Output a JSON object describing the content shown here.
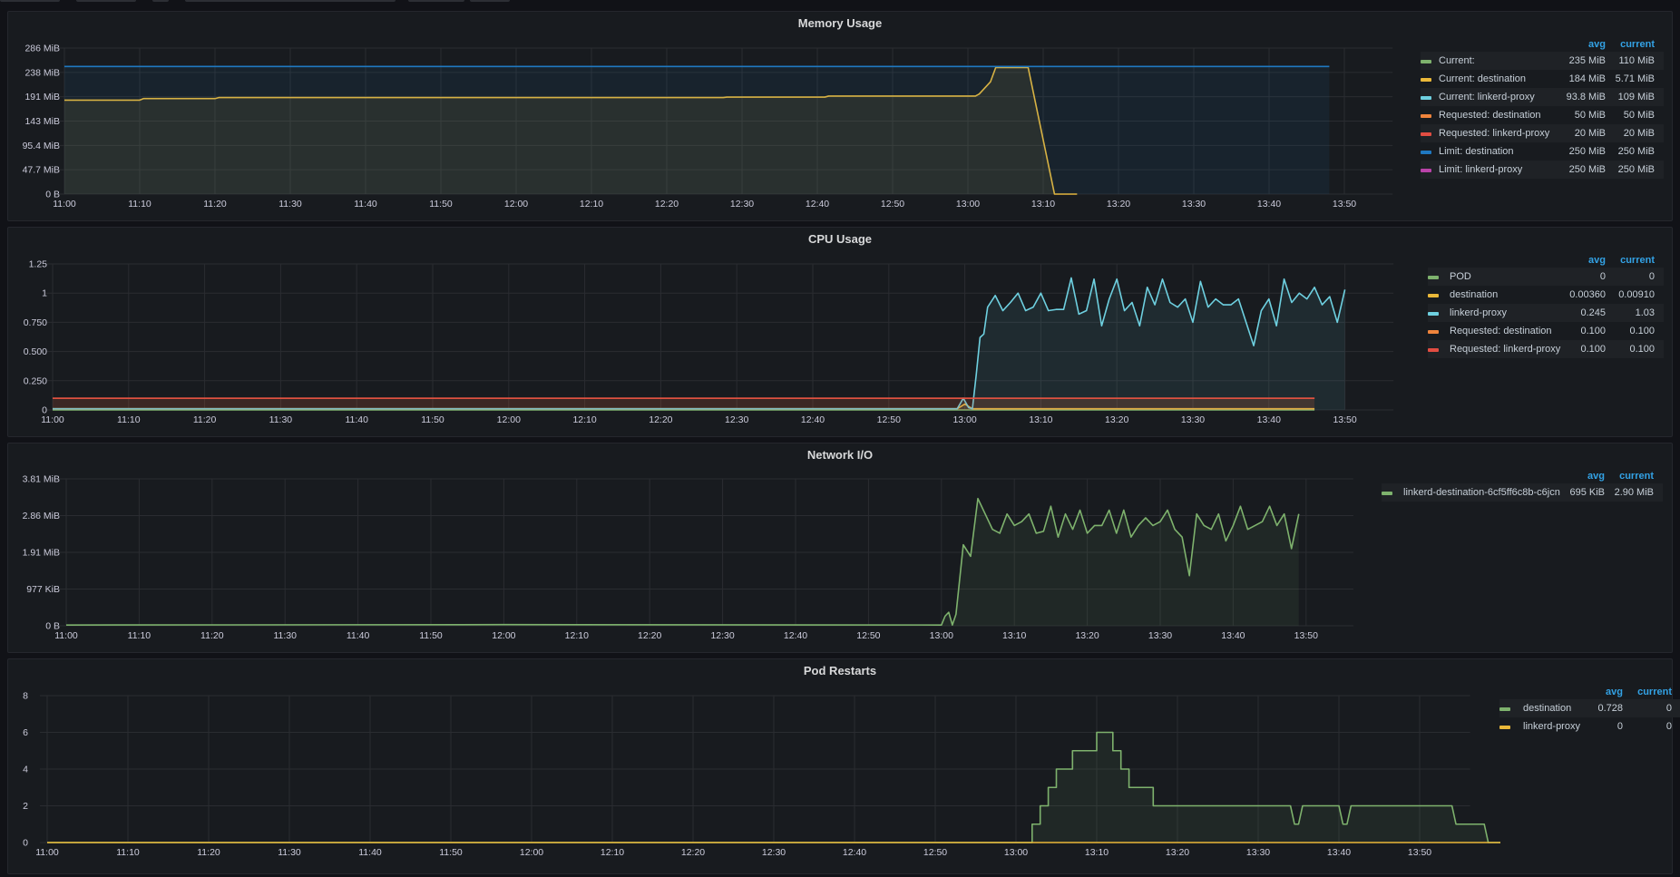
{
  "colors": {
    "green": "#7eb26d",
    "yellow": "#eab839",
    "cyan": "#6ed0e0",
    "orange": "#ef843c",
    "red": "#e24d42",
    "blue": "#1f78c1",
    "purple": "#ba43a9",
    "background": "#111217",
    "panel": "#181b1f",
    "header": "#33a2e5"
  },
  "legend_header": {
    "avg": "avg",
    "current": "current"
  },
  "panels": [
    {
      "title": "Memory Usage",
      "chart_data": {
        "type": "line",
        "x_unit": "time",
        "x_ticks": [
          "11:00",
          "11:10",
          "11:20",
          "11:30",
          "11:40",
          "11:50",
          "12:00",
          "12:10",
          "12:20",
          "12:30",
          "12:40",
          "12:50",
          "13:00",
          "13:10",
          "13:20",
          "13:30",
          "13:40",
          "13:50"
        ],
        "y_ticks": [
          "0 B",
          "47.7 MiB",
          "95.4 MiB",
          "143 MiB",
          "191 MiB",
          "238 MiB",
          "286 MiB"
        ],
        "ylim": [
          0,
          286
        ],
        "ylabel_unit": "MiB",
        "series": [
          {
            "name": "Current:",
            "color": "#7eb26d",
            "avg": "235 MiB",
            "current": "110 MiB",
            "points": []
          },
          {
            "name": "Current: destination",
            "color": "#eab839",
            "avg": "184 MiB",
            "current": "5.71 MiB",
            "points": [
              [
                0,
                184
              ],
              [
                10,
                184
              ],
              [
                10.5,
                187
              ],
              [
                20,
                187
              ],
              [
                20.5,
                189
              ],
              [
                60,
                189
              ],
              [
                87.5,
                189
              ],
              [
                88,
                190
              ],
              [
                101,
                190
              ],
              [
                101.5,
                192
              ],
              [
                121,
                192
              ],
              [
                121.5,
                196
              ],
              [
                123,
                220
              ],
              [
                123.7,
                248
              ],
              [
                128,
                248
              ],
              [
                131.5,
                0
              ],
              [
                134.5,
                0
              ]
            ]
          },
          {
            "name": "Current: linkerd-proxy",
            "color": "#6ed0e0",
            "avg": "93.8 MiB",
            "current": "109 MiB",
            "points": []
          },
          {
            "name": "Requested: destination",
            "color": "#ef843c",
            "avg": "50 MiB",
            "current": "50 MiB",
            "points": []
          },
          {
            "name": "Requested: linkerd-proxy",
            "color": "#e24d42",
            "avg": "20 MiB",
            "current": "20 MiB",
            "points": []
          },
          {
            "name": "Limit: destination",
            "color": "#1f78c1",
            "avg": "250 MiB",
            "current": "250 MiB",
            "points": [
              [
                0,
                250
              ],
              [
                168,
                250
              ]
            ]
          },
          {
            "name": "Limit: linkerd-proxy",
            "color": "#ba43a9",
            "avg": "250 MiB",
            "current": "250 MiB",
            "points": []
          }
        ]
      }
    },
    {
      "title": "CPU Usage",
      "chart_data": {
        "type": "line",
        "x_unit": "time",
        "x_ticks": [
          "11:00",
          "11:10",
          "11:20",
          "11:30",
          "11:40",
          "11:50",
          "12:00",
          "12:10",
          "12:20",
          "12:30",
          "12:40",
          "12:50",
          "13:00",
          "13:10",
          "13:20",
          "13:30",
          "13:40",
          "13:50"
        ],
        "y_ticks": [
          "0",
          "0.250",
          "0.500",
          "0.750",
          "1",
          "1.25"
        ],
        "ylim": [
          0,
          1.25
        ],
        "series": [
          {
            "name": "POD",
            "color": "#7eb26d",
            "avg": "0",
            "current": "0",
            "points": [
              [
                0,
                0
              ],
              [
                166,
                0
              ]
            ]
          },
          {
            "name": "destination",
            "color": "#eab839",
            "avg": "0.00360",
            "current": "0.00910",
            "points": [
              [
                0,
                0.01
              ],
              [
                119,
                0.01
              ],
              [
                120,
                0.05
              ],
              [
                121,
                0.01
              ],
              [
                166,
                0.01
              ]
            ]
          },
          {
            "name": "linkerd-proxy",
            "color": "#6ed0e0",
            "avg": "0.245",
            "current": "1.03",
            "points": [
              [
                0,
                0.01
              ],
              [
                119,
                0.01
              ],
              [
                119.8,
                0.1
              ],
              [
                120.5,
                0.02
              ],
              [
                121,
                0.01
              ],
              [
                121.5,
                0.3
              ],
              [
                122,
                0.62
              ],
              [
                122.5,
                0.65
              ],
              [
                123,
                0.88
              ],
              [
                124,
                0.98
              ],
              [
                125,
                0.85
              ],
              [
                126,
                0.92
              ],
              [
                127,
                1.0
              ],
              [
                128,
                0.85
              ],
              [
                129,
                0.88
              ],
              [
                130,
                1.0
              ],
              [
                131,
                0.85
              ],
              [
                132,
                0.86
              ],
              [
                133,
                0.86
              ],
              [
                134,
                1.13
              ],
              [
                135,
                0.82
              ],
              [
                136,
                0.85
              ],
              [
                137,
                1.12
              ],
              [
                138,
                0.72
              ],
              [
                139,
                0.95
              ],
              [
                140,
                1.12
              ],
              [
                141,
                0.85
              ],
              [
                142,
                0.92
              ],
              [
                143,
                0.72
              ],
              [
                144,
                1.05
              ],
              [
                145,
                0.9
              ],
              [
                146,
                1.12
              ],
              [
                147,
                0.92
              ],
              [
                148,
                0.88
              ],
              [
                149,
                0.95
              ],
              [
                150,
                0.75
              ],
              [
                151,
                1.1
              ],
              [
                152,
                0.88
              ],
              [
                153,
                0.95
              ],
              [
                154,
                0.9
              ],
              [
                155,
                0.9
              ],
              [
                156,
                0.95
              ],
              [
                157,
                0.75
              ],
              [
                158,
                0.55
              ],
              [
                159,
                0.85
              ],
              [
                160,
                0.95
              ],
              [
                161,
                0.72
              ],
              [
                162,
                1.12
              ],
              [
                163,
                0.92
              ],
              [
                164,
                1.0
              ],
              [
                165,
                0.95
              ],
              [
                166,
                1.05
              ],
              [
                167,
                0.9
              ],
              [
                168,
                0.97
              ],
              [
                169,
                0.75
              ],
              [
                170,
                1.03
              ]
            ]
          },
          {
            "name": "Requested: destination",
            "color": "#ef843c",
            "avg": "0.100",
            "current": "0.100",
            "points": [
              [
                0,
                0.1
              ],
              [
                166,
                0.1
              ]
            ]
          },
          {
            "name": "Requested: linkerd-proxy",
            "color": "#e24d42",
            "avg": "0.100",
            "current": "0.100",
            "points": [
              [
                0,
                0.1
              ],
              [
                166,
                0.1
              ]
            ]
          }
        ]
      }
    },
    {
      "title": "Network I/O",
      "chart_data": {
        "type": "line",
        "x_unit": "time",
        "x_ticks": [
          "11:00",
          "11:10",
          "11:20",
          "11:30",
          "11:40",
          "11:50",
          "12:00",
          "12:10",
          "12:20",
          "12:30",
          "12:40",
          "12:50",
          "13:00",
          "13:10",
          "13:20",
          "13:30",
          "13:40",
          "13:50"
        ],
        "y_ticks": [
          "0 B",
          "977 KiB",
          "1.91 MiB",
          "2.86 MiB",
          "3.81 MiB"
        ],
        "ylim": [
          0,
          3.81
        ],
        "ylabel_unit": "MiB",
        "series": [
          {
            "name": "linkerd-destination-6cf5ff6c8b-c6jcn",
            "color": "#7eb26d",
            "avg": "695 KiB",
            "current": "2.90 MiB",
            "points": [
              [
                0,
                0.02
              ],
              [
                60,
                0.03
              ],
              [
                120,
                0.02
              ],
              [
                120.5,
                0.25
              ],
              [
                121,
                0.35
              ],
              [
                121.5,
                0.02
              ],
              [
                122,
                0.3
              ],
              [
                123,
                2.1
              ],
              [
                124,
                1.8
              ],
              [
                125,
                3.3
              ],
              [
                126,
                2.9
              ],
              [
                127,
                2.5
              ],
              [
                128,
                2.4
              ],
              [
                129,
                2.9
              ],
              [
                130,
                2.6
              ],
              [
                131,
                2.7
              ],
              [
                132,
                2.9
              ],
              [
                133,
                2.4
              ],
              [
                134,
                2.45
              ],
              [
                135,
                3.1
              ],
              [
                136,
                2.3
              ],
              [
                137,
                2.9
              ],
              [
                138,
                2.5
              ],
              [
                139,
                3.0
              ],
              [
                140,
                2.4
              ],
              [
                141,
                2.6
              ],
              [
                142,
                2.6
              ],
              [
                143,
                3.0
              ],
              [
                144,
                2.4
              ],
              [
                145,
                3.0
              ],
              [
                146,
                2.3
              ],
              [
                147,
                2.6
              ],
              [
                148,
                2.8
              ],
              [
                149,
                2.6
              ],
              [
                150,
                2.7
              ],
              [
                151,
                3.0
              ],
              [
                152,
                2.5
              ],
              [
                153,
                2.3
              ],
              [
                154,
                1.3
              ],
              [
                155,
                2.9
              ],
              [
                156,
                2.6
              ],
              [
                157,
                2.5
              ],
              [
                158,
                2.9
              ],
              [
                159,
                2.2
              ],
              [
                160,
                2.6
              ],
              [
                161,
                3.1
              ],
              [
                162,
                2.5
              ],
              [
                163,
                2.6
              ],
              [
                164,
                2.7
              ],
              [
                165,
                3.1
              ],
              [
                166,
                2.6
              ],
              [
                167,
                2.9
              ],
              [
                168,
                2.0
              ],
              [
                169,
                2.9
              ]
            ]
          }
        ]
      }
    },
    {
      "title": "Pod Restarts",
      "chart_data": {
        "type": "line",
        "x_unit": "time",
        "x_ticks": [
          "11:00",
          "11:10",
          "11:20",
          "11:30",
          "11:40",
          "11:50",
          "12:00",
          "12:10",
          "12:20",
          "12:30",
          "12:40",
          "12:50",
          "13:00",
          "13:10",
          "13:20",
          "13:30",
          "13:40",
          "13:50"
        ],
        "y_ticks": [
          "0",
          "2",
          "4",
          "6",
          "8"
        ],
        "ylim": [
          0,
          8
        ],
        "series": [
          {
            "name": "destination",
            "color": "#7eb26d",
            "avg": "0.728",
            "current": "0",
            "points": [
              [
                0,
                0
              ],
              [
                122,
                0
              ],
              [
                122,
                1
              ],
              [
                123,
                1
              ],
              [
                123,
                2
              ],
              [
                124,
                2
              ],
              [
                124,
                3
              ],
              [
                125,
                3
              ],
              [
                125,
                4
              ],
              [
                127,
                4
              ],
              [
                127,
                5
              ],
              [
                130,
                5
              ],
              [
                130,
                6
              ],
              [
                132,
                6
              ],
              [
                132,
                5
              ],
              [
                133,
                5
              ],
              [
                133,
                4
              ],
              [
                134,
                4
              ],
              [
                134,
                3
              ],
              [
                137,
                3
              ],
              [
                137,
                2
              ],
              [
                154,
                2
              ],
              [
                154.5,
                1
              ],
              [
                155,
                1
              ],
              [
                155.5,
                2
              ],
              [
                160,
                2
              ],
              [
                160.5,
                1
              ],
              [
                161,
                1
              ],
              [
                161.5,
                2
              ],
              [
                174,
                2
              ],
              [
                174.5,
                1
              ],
              [
                178,
                1
              ],
              [
                178.5,
                0
              ],
              [
                180,
                0
              ]
            ]
          },
          {
            "name": "linkerd-proxy",
            "color": "#eab839",
            "avg": "0",
            "current": "0",
            "points": [
              [
                0,
                0
              ],
              [
                180,
                0
              ]
            ]
          }
        ]
      }
    }
  ]
}
